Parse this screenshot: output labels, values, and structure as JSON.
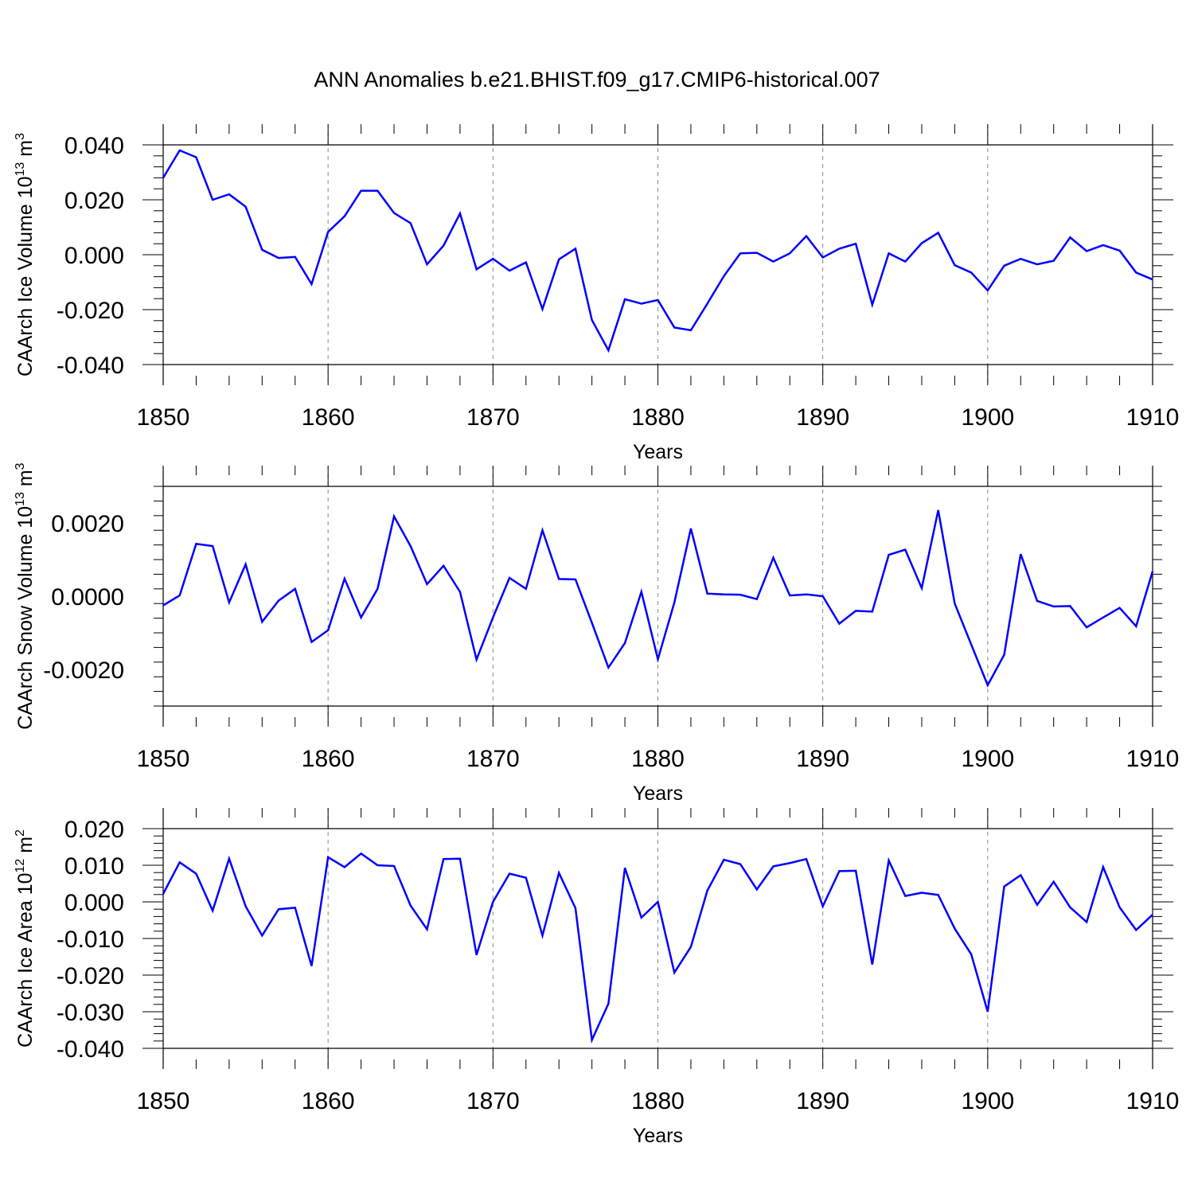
{
  "title": "ANN Anomalies b.e21.BHIST.f09_g17.CMIP6-historical.007",
  "line_color": "#0000ff",
  "chart_data": [
    {
      "type": "line",
      "ylabel": "CAArch Ice Volume 10",
      "ylabel_exp": "13",
      "ylabel_unit": " m",
      "ylabel_unit_exp": "3",
      "xlabel": "Years",
      "xlim": [
        1850,
        1910
      ],
      "ylim": [
        -0.04,
        0.04
      ],
      "xticks": [
        "1850",
        "1860",
        "1870",
        "1880",
        "1890",
        "1900",
        "1910"
      ],
      "yticks": [
        {
          "value": -0.04,
          "label": "-0.040"
        },
        {
          "value": -0.02,
          "label": "-0.020"
        },
        {
          "value": 0.0,
          "label": "0.000"
        },
        {
          "value": 0.02,
          "label": "0.020"
        },
        {
          "value": 0.04,
          "label": "0.040"
        }
      ],
      "grid_x": true,
      "x": [
        1850,
        1851,
        1852,
        1853,
        1854,
        1855,
        1856,
        1857,
        1858,
        1859,
        1860,
        1861,
        1862,
        1863,
        1864,
        1865,
        1866,
        1867,
        1868,
        1869,
        1870,
        1871,
        1872,
        1873,
        1874,
        1875,
        1876,
        1877,
        1878,
        1879,
        1880,
        1881,
        1882,
        1883,
        1884,
        1885,
        1886,
        1887,
        1888,
        1889,
        1890,
        1891,
        1892,
        1893,
        1894,
        1895,
        1896,
        1897,
        1898,
        1899,
        1900,
        1901,
        1902,
        1903,
        1904,
        1905,
        1906,
        1907,
        1908,
        1909,
        1910
      ],
      "y": [
        0.028,
        0.038,
        0.0355,
        0.02,
        0.022,
        0.0175,
        0.0018,
        -0.0012,
        -0.0008,
        -0.0107,
        0.0083,
        0.014,
        0.0233,
        0.0233,
        0.0152,
        0.0115,
        -0.0035,
        0.0033,
        0.015,
        -0.0053,
        -0.0015,
        -0.0058,
        -0.0028,
        -0.0198,
        -0.0017,
        0.0022,
        -0.0238,
        -0.0348,
        -0.0162,
        -0.0178,
        -0.0165,
        -0.0265,
        -0.0275,
        -0.0178,
        -0.0078,
        0.0005,
        0.0007,
        -0.0025,
        0.0005,
        0.0068,
        -0.001,
        0.0022,
        0.004,
        -0.0182,
        0.0005,
        -0.0025,
        0.0042,
        0.008,
        -0.0038,
        -0.0065,
        -0.013,
        -0.004,
        -0.0015,
        -0.0035,
        -0.0022,
        0.0063,
        0.0013,
        0.0035,
        0.0015,
        -0.0065,
        -0.009
      ]
    },
    {
      "type": "line",
      "ylabel": "CAArch Snow Volume 10",
      "ylabel_exp": "13",
      "ylabel_unit": " m",
      "ylabel_unit_exp": "3",
      "xlabel": "Years",
      "xlim": [
        1850,
        1910
      ],
      "ylim": [
        -0.003,
        0.003
      ],
      "xticks": [
        "1850",
        "1860",
        "1870",
        "1880",
        "1890",
        "1900",
        "1910"
      ],
      "yticks": [
        {
          "value": -0.002,
          "label": "-0.0020"
        },
        {
          "value": 0.0,
          "label": "0.0000"
        },
        {
          "value": 0.002,
          "label": "0.0020"
        }
      ],
      "grid_x": true,
      "x": [
        1850,
        1851,
        1852,
        1853,
        1854,
        1855,
        1856,
        1857,
        1858,
        1859,
        1860,
        1861,
        1862,
        1863,
        1864,
        1865,
        1866,
        1867,
        1868,
        1869,
        1870,
        1871,
        1872,
        1873,
        1874,
        1875,
        1876,
        1877,
        1878,
        1879,
        1880,
        1881,
        1882,
        1883,
        1884,
        1885,
        1886,
        1887,
        1888,
        1889,
        1890,
        1891,
        1892,
        1893,
        1894,
        1895,
        1896,
        1897,
        1898,
        1899,
        1900,
        1901,
        1902,
        1903,
        1904,
        1905,
        1906,
        1907,
        1908,
        1909,
        1910
      ],
      "y": [
        -0.00025,
        2e-05,
        0.00143,
        0.00137,
        -0.00017,
        0.00087,
        -0.0007,
        -0.00012,
        0.0002,
        -0.00125,
        -0.00093,
        0.00048,
        -0.00058,
        0.0002,
        0.00218,
        0.00137,
        0.00033,
        0.00083,
        0.00012,
        -0.00173,
        -0.00058,
        0.0005,
        0.0002,
        0.0018,
        0.00047,
        0.00046,
        -0.00073,
        -0.00195,
        -0.00128,
        0.00012,
        -0.00172,
        -0.00017,
        0.00185,
        7e-05,
        5e-05,
        4e-05,
        -8e-05,
        0.00105,
        2e-05,
        5e-05,
        0.0,
        -0.00075,
        -0.0004,
        -0.00042,
        0.00113,
        0.00127,
        0.00022,
        0.00235,
        -0.0002,
        -0.00132,
        -0.00243,
        -0.0016,
        0.00115,
        -0.00013,
        -0.00028,
        -0.00027,
        -0.00085,
        -0.00058,
        -0.00032,
        -0.00082,
        0.00068
      ]
    },
    {
      "type": "line",
      "ylabel": "CAArch Ice Area 10",
      "ylabel_exp": "12",
      "ylabel_unit": " m",
      "ylabel_unit_exp": "2",
      "xlabel": "Years",
      "xlim": [
        1850,
        1910
      ],
      "ylim": [
        -0.04,
        0.02
      ],
      "xticks": [
        "1850",
        "1860",
        "1870",
        "1880",
        "1890",
        "1900",
        "1910"
      ],
      "yticks": [
        {
          "value": -0.04,
          "label": "-0.040"
        },
        {
          "value": -0.03,
          "label": "-0.030"
        },
        {
          "value": -0.02,
          "label": "-0.020"
        },
        {
          "value": -0.01,
          "label": "-0.010"
        },
        {
          "value": 0.0,
          "label": "0.000"
        },
        {
          "value": 0.01,
          "label": "0.010"
        },
        {
          "value": 0.02,
          "label": "0.020"
        }
      ],
      "grid_x": true,
      "x": [
        1850,
        1851,
        1852,
        1853,
        1854,
        1855,
        1856,
        1857,
        1858,
        1859,
        1860,
        1861,
        1862,
        1863,
        1864,
        1865,
        1866,
        1867,
        1868,
        1869,
        1870,
        1871,
        1872,
        1873,
        1874,
        1875,
        1876,
        1877,
        1878,
        1879,
        1880,
        1881,
        1882,
        1883,
        1884,
        1885,
        1886,
        1887,
        1888,
        1889,
        1890,
        1891,
        1892,
        1893,
        1894,
        1895,
        1896,
        1897,
        1898,
        1899,
        1900,
        1901,
        1902,
        1903,
        1904,
        1905,
        1906,
        1907,
        1908,
        1909,
        1910
      ],
      "y": [
        0.0022,
        0.0108,
        0.0077,
        -0.0024,
        0.0118,
        -0.0012,
        -0.0092,
        -0.002,
        -0.0016,
        -0.0175,
        0.0122,
        0.0095,
        0.0132,
        0.01,
        0.0098,
        -0.001,
        -0.0075,
        0.0117,
        0.0118,
        -0.0145,
        0.0,
        0.0077,
        0.0066,
        -0.0092,
        0.0079,
        -0.0017,
        -0.0377,
        -0.0278,
        0.0093,
        -0.0043,
        0.0,
        -0.0193,
        -0.0123,
        0.0031,
        0.0115,
        0.0103,
        0.0034,
        0.0097,
        0.0106,
        0.0117,
        -0.0012,
        0.0084,
        0.0085,
        -0.0171,
        0.0113,
        0.0016,
        0.0025,
        0.0019,
        -0.0073,
        -0.0143,
        -0.03,
        0.0042,
        0.0073,
        -0.0008,
        0.0055,
        -0.0015,
        -0.0055,
        0.0095,
        -0.0015,
        -0.0077,
        -0.0035
      ]
    }
  ]
}
